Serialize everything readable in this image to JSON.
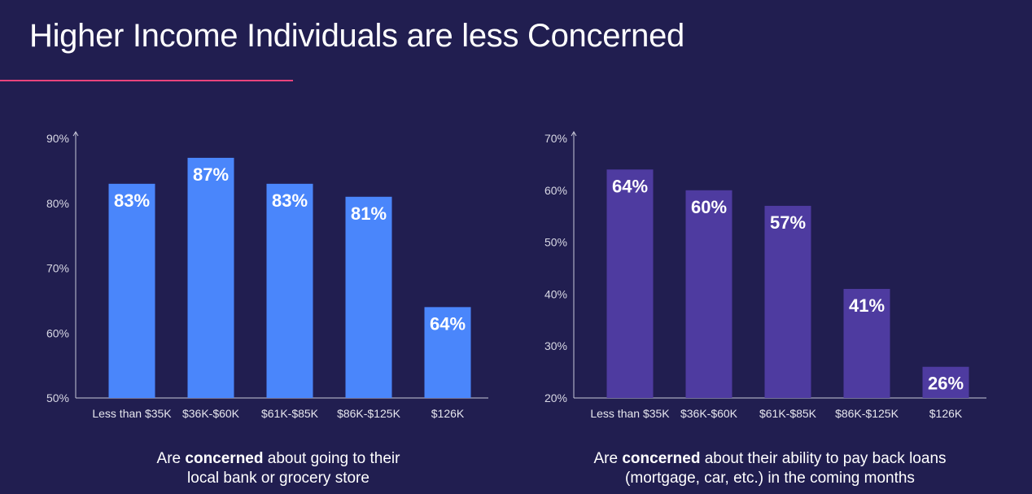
{
  "title": "Higher Income Individuals are less Concerned",
  "colors": {
    "accent_line": "#e8437c",
    "left_bars": "#4a86fb",
    "right_bars": "#4e3ba0",
    "background": "#211e50",
    "axis": "#c8c8d8"
  },
  "captions": [
    {
      "pre": "Are ",
      "bold": "concerned",
      "post": " about going to their",
      "line2": "local bank or grocery store"
    },
    {
      "pre": "Are ",
      "bold": "concerned",
      "post": " about their ability to pay back loans",
      "line2": "(mortgage, car, etc.) in the coming months"
    }
  ],
  "chart_data": [
    {
      "type": "bar",
      "title": "",
      "xlabel": "",
      "ylabel": "",
      "categories": [
        "Less than $35K",
        "$36K-$60K",
        "$61K-$85K",
        "$86K-$125K",
        "$126K"
      ],
      "values": [
        83,
        87,
        83,
        81,
        64
      ],
      "value_labels": [
        "83%",
        "87%",
        "83%",
        "81%",
        "64%"
      ],
      "ylim": [
        50,
        90
      ],
      "yticks": [
        50,
        60,
        70,
        80,
        90
      ],
      "ytick_labels": [
        "50%",
        "60%",
        "70%",
        "80%",
        "90%"
      ],
      "grid": false,
      "color": "#4a86fb"
    },
    {
      "type": "bar",
      "title": "",
      "xlabel": "",
      "ylabel": "",
      "categories": [
        "Less than $35K",
        "$36K-$60K",
        "$61K-$85K",
        "$86K-$125K",
        "$126K"
      ],
      "values": [
        64,
        60,
        57,
        41,
        26
      ],
      "value_labels": [
        "64%",
        "60%",
        "57%",
        "41%",
        "26%"
      ],
      "ylim": [
        20,
        70
      ],
      "yticks": [
        20,
        30,
        40,
        50,
        60,
        70
      ],
      "ytick_labels": [
        "20%",
        "30%",
        "40%",
        "50%",
        "60%",
        "70%"
      ],
      "grid": false,
      "color": "#4e3ba0"
    }
  ]
}
